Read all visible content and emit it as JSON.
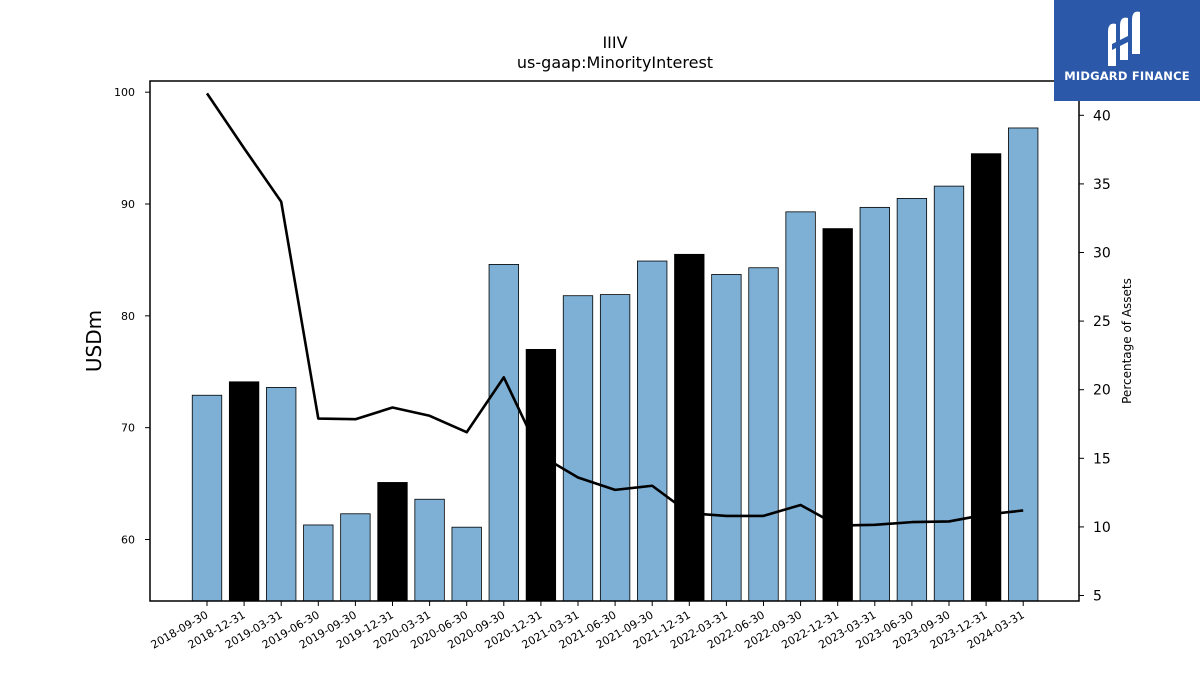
{
  "logo": {
    "text": "MIDGARD FINANCE",
    "color": "#2b58a8"
  },
  "colors": {
    "bar_default": "#7eb0d5",
    "bar_highlight": "#000000",
    "line": "#000000"
  },
  "chart_data": {
    "type": "bar",
    "title": "IIIV",
    "subtitle": "us-gaap:MinorityInterest",
    "ylabel": "USDm",
    "y2label": "Percentage of Assets",
    "ylim": [
      54.5,
      101
    ],
    "y2lim": [
      4.6,
      42.5
    ],
    "yticks": [
      60,
      70,
      80,
      90,
      100
    ],
    "y2ticks": [
      5,
      10,
      15,
      20,
      25,
      30,
      35,
      40
    ],
    "categories": [
      "2018-09-30",
      "2018-12-31",
      "2019-03-31",
      "2019-06-30",
      "2019-09-30",
      "2019-12-31",
      "2020-03-31",
      "2020-06-30",
      "2020-09-30",
      "2020-12-31",
      "2021-03-31",
      "2021-06-30",
      "2021-09-30",
      "2021-12-31",
      "2022-03-31",
      "2022-06-30",
      "2022-09-30",
      "2022-12-31",
      "2023-03-31",
      "2023-06-30",
      "2023-09-30",
      "2023-12-31",
      "2024-03-31"
    ],
    "series": [
      {
        "type": "bar",
        "values": [
          72.9,
          74.1,
          73.6,
          61.3,
          62.3,
          65.1,
          63.6,
          61.1,
          84.6,
          77.0,
          81.8,
          81.9,
          84.9,
          85.5,
          83.7,
          84.3,
          89.3,
          87.8,
          89.7,
          90.5,
          91.6,
          94.5,
          96.8
        ],
        "highlight": [
          false,
          true,
          false,
          false,
          false,
          true,
          false,
          false,
          false,
          true,
          false,
          false,
          false,
          true,
          false,
          false,
          false,
          true,
          false,
          false,
          false,
          true,
          false
        ]
      },
      {
        "type": "line",
        "axis": "right",
        "values": [
          41.6,
          37.6,
          33.7,
          17.9,
          17.85,
          18.7,
          18.1,
          16.9,
          20.9,
          15.2,
          13.6,
          12.7,
          13.0,
          11.0,
          10.8,
          10.8,
          11.6,
          10.1,
          10.15,
          10.35,
          10.4,
          10.9,
          11.2
        ]
      }
    ],
    "grid": false,
    "legend": "none"
  }
}
